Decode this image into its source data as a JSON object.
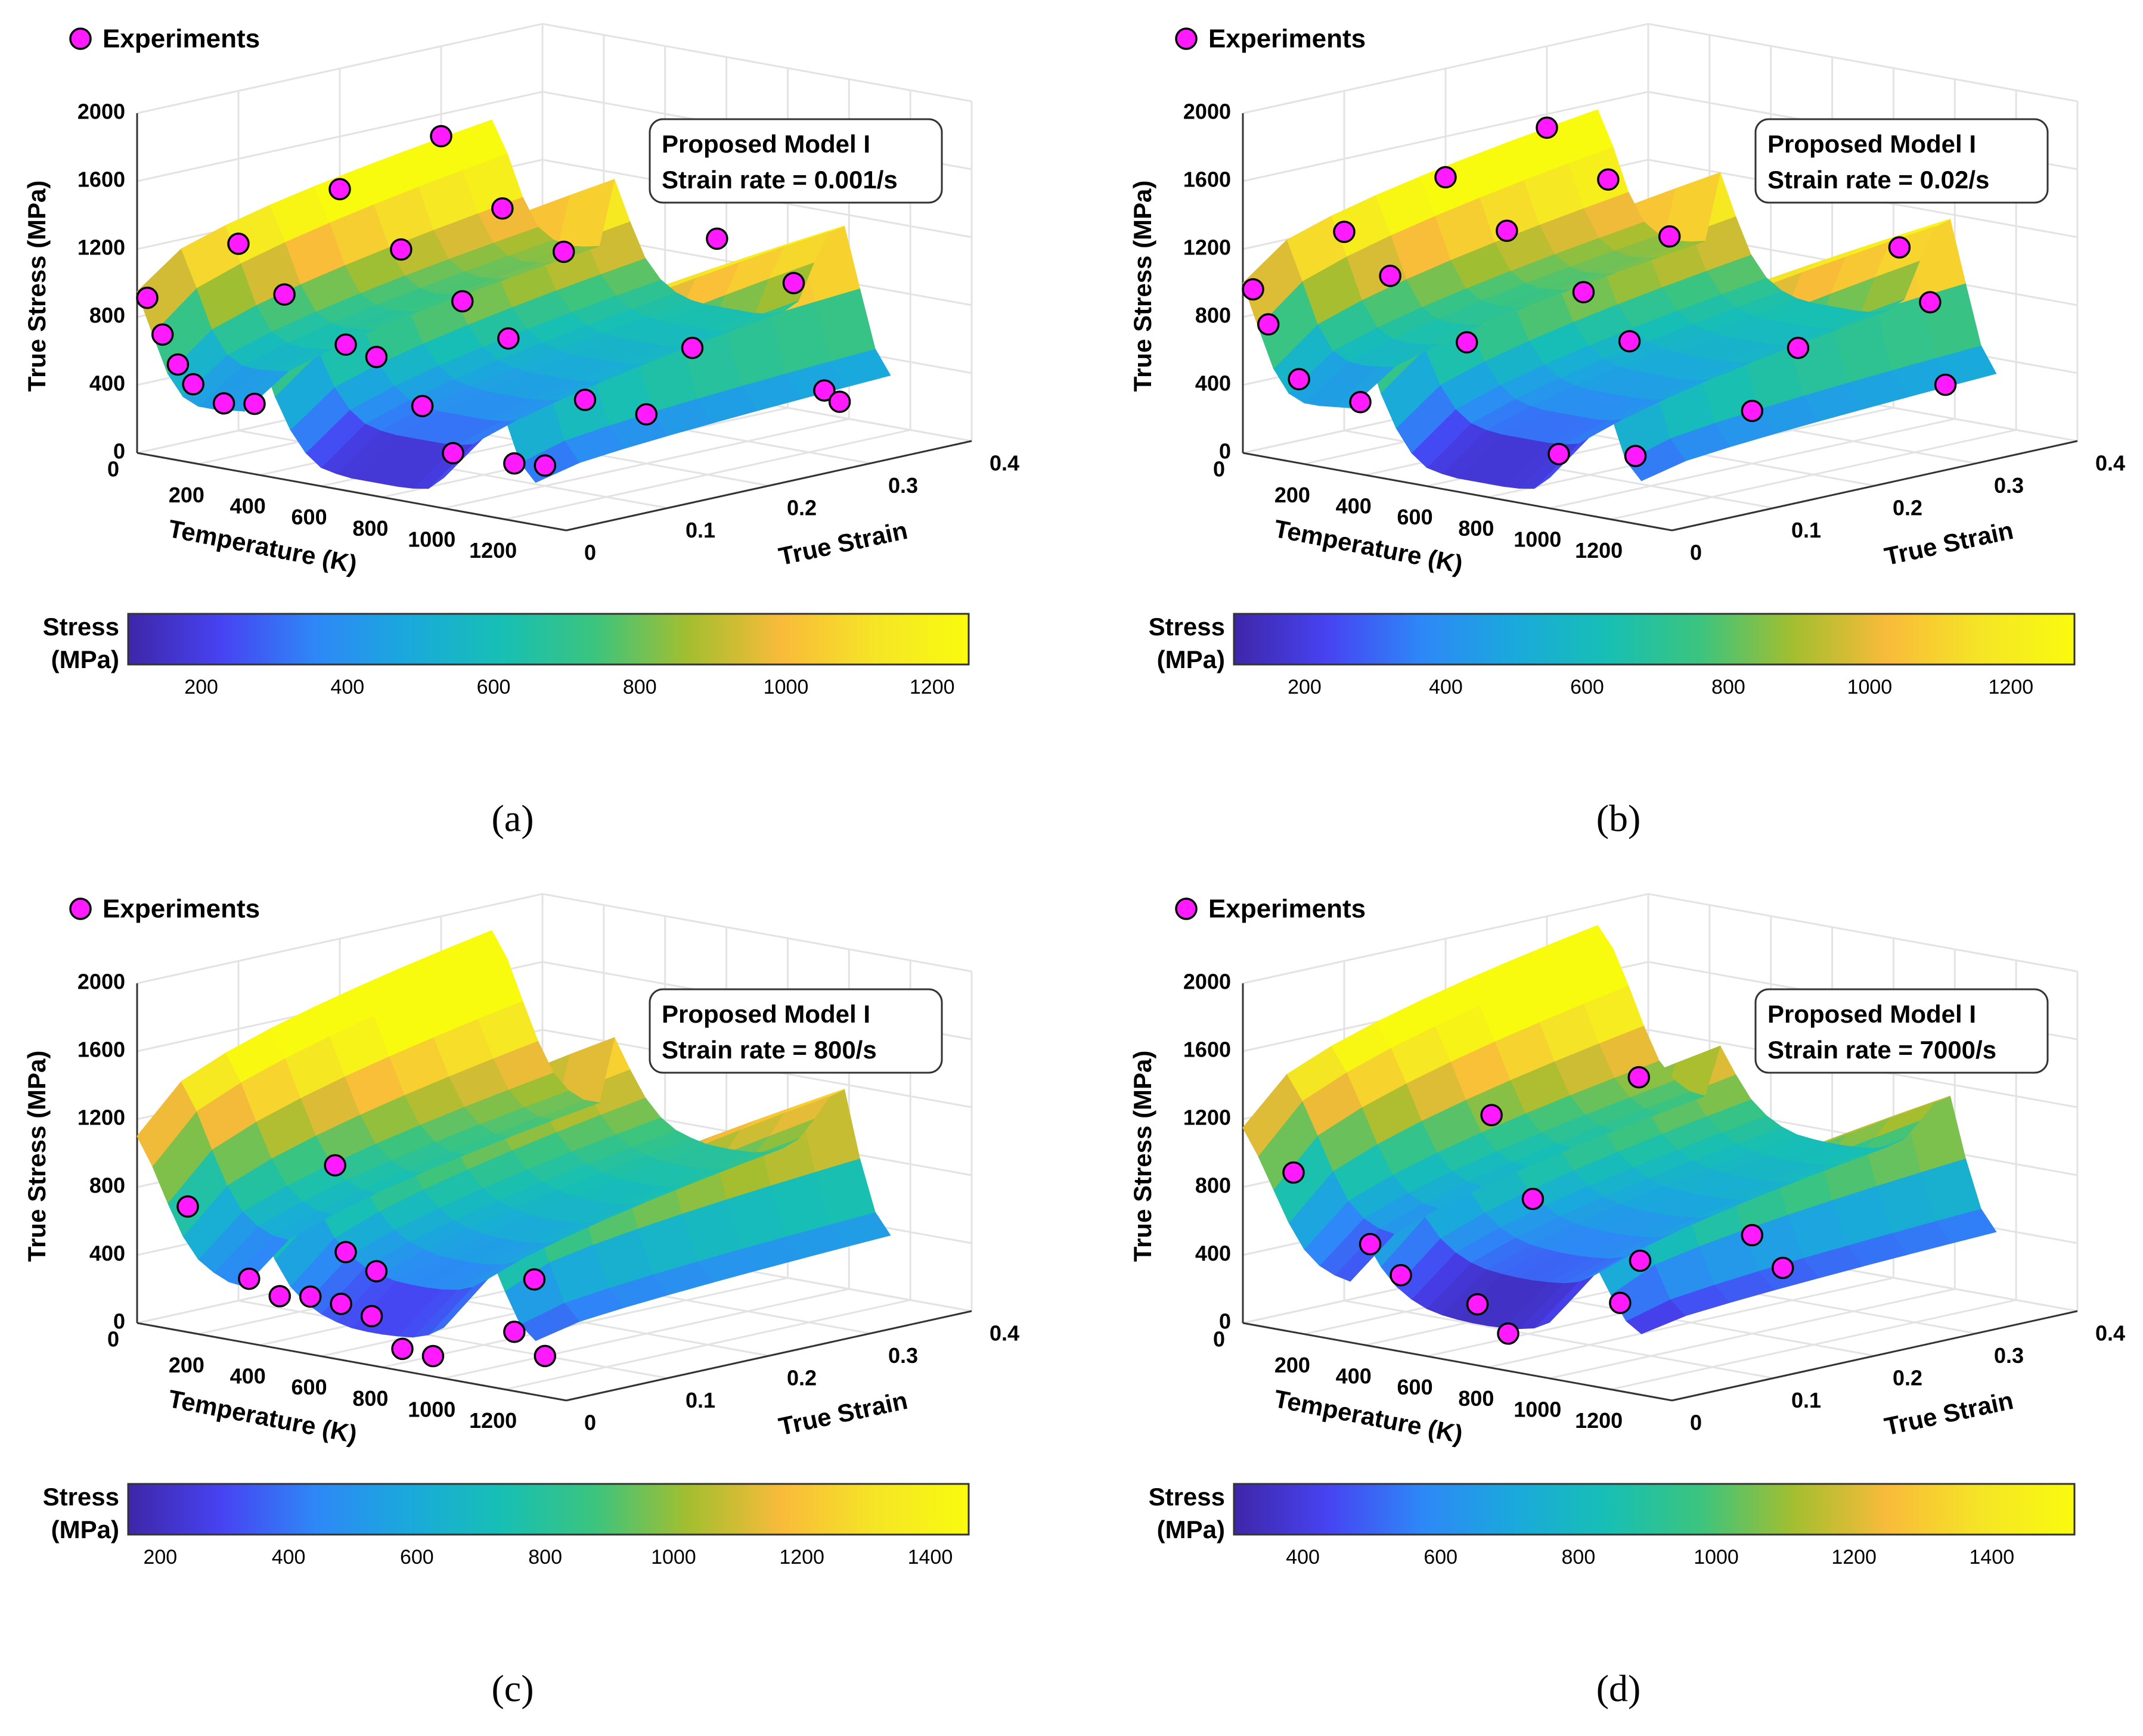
{
  "figure": {
    "panels": [
      {
        "caption": "(a)",
        "legend_label": "Experiments",
        "model_box": {
          "line1": "Proposed Model I",
          "line2": "Strain rate = 0.001/s"
        },
        "zlabel": "True Stress (MPa)",
        "xlabel": "Temperature (K)",
        "ylabel": "True Strain",
        "z_ticks": [
          "0",
          "400",
          "800",
          "1200",
          "1600",
          "2000"
        ],
        "x_ticks": [
          "0",
          "200",
          "400",
          "600",
          "800",
          "1000",
          "1200"
        ],
        "y_ticks": [
          "0",
          "0.1",
          "0.2",
          "0.3",
          "0.4"
        ],
        "colorbar": {
          "label_line1": "Stress",
          "label_line2": "(MPa)",
          "ticks": [
            "200",
            "400",
            "600",
            "800",
            "1000",
            "1200"
          ]
        }
      },
      {
        "caption": "(b)",
        "legend_label": "Experiments",
        "model_box": {
          "line1": "Proposed Model I",
          "line2": "Strain rate = 0.02/s"
        },
        "zlabel": "True Stress (MPa)",
        "xlabel": "Temperature (K)",
        "ylabel": "True Strain",
        "z_ticks": [
          "0",
          "400",
          "800",
          "1200",
          "1600",
          "2000"
        ],
        "x_ticks": [
          "0",
          "200",
          "400",
          "600",
          "800",
          "1000",
          "1200"
        ],
        "y_ticks": [
          "0",
          "0.1",
          "0.2",
          "0.3",
          "0.4"
        ],
        "colorbar": {
          "label_line1": "Stress",
          "label_line2": "(MPa)",
          "ticks": [
            "200",
            "400",
            "600",
            "800",
            "1000",
            "1200"
          ]
        }
      },
      {
        "caption": "(c)",
        "legend_label": "Experiments",
        "model_box": {
          "line1": "Proposed Model I",
          "line2": "Strain rate = 800/s"
        },
        "zlabel": "True Stress (MPa)",
        "xlabel": "Temperature (K)",
        "ylabel": "True Strain",
        "z_ticks": [
          "0",
          "400",
          "800",
          "1200",
          "1600",
          "2000"
        ],
        "x_ticks": [
          "0",
          "200",
          "400",
          "600",
          "800",
          "1000",
          "1200"
        ],
        "y_ticks": [
          "0",
          "0.1",
          "0.2",
          "0.3",
          "0.4"
        ],
        "colorbar": {
          "label_line1": "Stress",
          "label_line2": "(MPa)",
          "ticks": [
            "200",
            "400",
            "600",
            "800",
            "1000",
            "1200",
            "1400"
          ]
        }
      },
      {
        "caption": "(d)",
        "legend_label": "Experiments",
        "model_box": {
          "line1": "Proposed Model I",
          "line2": "Strain rate = 7000/s"
        },
        "zlabel": "True Stress (MPa)",
        "xlabel": "Temperature (K)",
        "ylabel": "True Strain",
        "z_ticks": [
          "0",
          "400",
          "800",
          "1200",
          "1600",
          "2000"
        ],
        "x_ticks": [
          "0",
          "200",
          "400",
          "600",
          "800",
          "1000",
          "1200"
        ],
        "y_ticks": [
          "0",
          "0.1",
          "0.2",
          "0.3",
          "0.4"
        ],
        "colorbar": {
          "label_line1": "Stress",
          "label_line2": "(MPa)",
          "ticks": [
            "400",
            "600",
            "800",
            "1000",
            "1200",
            "1400"
          ]
        }
      }
    ]
  },
  "colors": {
    "marker_fill": "#ff1aff",
    "marker_stroke": "#000000",
    "parula": [
      "#3e26a8",
      "#4743f2",
      "#2e87f7",
      "#1aa9dc",
      "#17bfb4",
      "#3cc47e",
      "#a4be2f",
      "#f9bb3a",
      "#f5e526",
      "#f9fb0e"
    ]
  },
  "chart_data": [
    {
      "type": "surface3d",
      "title": "Proposed Model I — Strain rate = 0.001/s",
      "xlabel": "Temperature (K)",
      "ylabel": "True Strain",
      "zlabel": "True Stress (MPa)",
      "xlim": [
        0,
        1400
      ],
      "ylim": [
        0,
        0.4
      ],
      "zlim": [
        0,
        2000
      ],
      "surface": {
        "temperatures": [
          0,
          50,
          100,
          150,
          200,
          250,
          300,
          350,
          400,
          450,
          500,
          550,
          600,
          650,
          700,
          750,
          800,
          850,
          900,
          950,
          1000,
          1050,
          1100,
          1150,
          1200,
          1250,
          1300
        ],
        "strain_max": 0.35,
        "stress_at_strain_0": [
          950,
          720,
          500,
          380,
          340,
          340,
          350,
          360,
          720,
          480,
          300,
          180,
          110,
          90,
          80,
          80,
          80,
          80,
          85,
          100,
          180,
          430,
          720,
          860,
          600,
          350,
          250
        ],
        "stress_at_strain_max": [
          1500,
          1320,
          1080,
          920,
          860,
          840,
          850,
          870,
          1280,
          1050,
          850,
          740,
          680,
          650,
          640,
          640,
          640,
          640,
          650,
          680,
          760,
          1000,
          1200,
          1250,
          900,
          560,
          420
        ]
      },
      "experiments": [
        {
          "T": 0,
          "strain": 0.01,
          "stress": 900
        },
        {
          "T": 50,
          "strain": 0.01,
          "stress": 700
        },
        {
          "T": 100,
          "strain": 0.01,
          "stress": 540
        },
        {
          "T": 150,
          "strain": 0.01,
          "stress": 440
        },
        {
          "T": 250,
          "strain": 0.01,
          "stress": 360
        },
        {
          "T": 350,
          "strain": 0.01,
          "stress": 390
        },
        {
          "T": 0,
          "strain": 0.1,
          "stress": 1100
        },
        {
          "T": 150,
          "strain": 0.1,
          "stress": 850
        },
        {
          "T": 350,
          "strain": 0.1,
          "stress": 620
        },
        {
          "T": 450,
          "strain": 0.1,
          "stress": 580
        },
        {
          "T": 600,
          "strain": 0.1,
          "stress": 340
        },
        {
          "T": 700,
          "strain": 0.1,
          "stress": 95
        },
        {
          "T": 900,
          "strain": 0.1,
          "stress": 100
        },
        {
          "T": 1000,
          "strain": 0.1,
          "stress": 120
        },
        {
          "T": 0,
          "strain": 0.2,
          "stress": 1290
        },
        {
          "T": 200,
          "strain": 0.2,
          "stress": 1000
        },
        {
          "T": 400,
          "strain": 0.2,
          "stress": 760
        },
        {
          "T": 550,
          "strain": 0.2,
          "stress": 590
        },
        {
          "T": 800,
          "strain": 0.2,
          "stress": 310
        },
        {
          "T": 1000,
          "strain": 0.2,
          "stress": 290
        },
        {
          "T": 1150,
          "strain": 0.2,
          "stress": 730
        },
        {
          "T": 0,
          "strain": 0.3,
          "stress": 1470
        },
        {
          "T": 200,
          "strain": 0.3,
          "stress": 1110
        },
        {
          "T": 400,
          "strain": 0.3,
          "stress": 920
        },
        {
          "T": 900,
          "strain": 0.3,
          "stress": 1160
        },
        {
          "T": 1150,
          "strain": 0.3,
          "stress": 980
        },
        {
          "T": 1250,
          "strain": 0.3,
          "stress": 380
        },
        {
          "T": 1300,
          "strain": 0.3,
          "stress": 330
        }
      ],
      "colorbar": {
        "label": "Stress (MPa)",
        "range": [
          100,
          1250
        ]
      }
    },
    {
      "type": "surface3d",
      "title": "Proposed Model I — Strain rate = 0.02/s",
      "xlabel": "Temperature (K)",
      "ylabel": "True Strain",
      "zlabel": "True Stress (MPa)",
      "xlim": [
        0,
        1400
      ],
      "ylim": [
        0,
        0.4
      ],
      "zlim": [
        0,
        2000
      ],
      "surface": {
        "temperatures": [
          0,
          50,
          100,
          150,
          200,
          250,
          300,
          350,
          400,
          450,
          500,
          550,
          600,
          650,
          700,
          750,
          800,
          850,
          900,
          950,
          1000,
          1050,
          1100,
          1150,
          1200,
          1250,
          1300
        ],
        "strain_max": 0.35,
        "stress_at_strain_0": [
          1000,
          760,
          530,
          400,
          360,
          360,
          370,
          380,
          760,
          500,
          310,
          180,
          110,
          90,
          80,
          80,
          80,
          80,
          85,
          100,
          180,
          430,
          760,
          900,
          620,
          360,
          260
        ],
        "stress_at_strain_max": [
          1560,
          1360,
          1110,
          950,
          890,
          870,
          880,
          900,
          1320,
          1080,
          870,
          750,
          690,
          660,
          650,
          650,
          650,
          650,
          660,
          690,
          770,
          1010,
          1230,
          1290,
          930,
          580,
          430
        ]
      },
      "experiments": [
        {
          "T": 0,
          "strain": 0.01,
          "stress": 950
        },
        {
          "T": 50,
          "strain": 0.01,
          "stress": 760
        },
        {
          "T": 150,
          "strain": 0.01,
          "stress": 470
        },
        {
          "T": 350,
          "strain": 0.01,
          "stress": 400
        },
        {
          "T": 0,
          "strain": 0.1,
          "stress": 1170
        },
        {
          "T": 150,
          "strain": 0.1,
          "stress": 960
        },
        {
          "T": 400,
          "strain": 0.1,
          "stress": 650
        },
        {
          "T": 700,
          "strain": 0.1,
          "stress": 90
        },
        {
          "T": 950,
          "strain": 0.1,
          "stress": 160
        },
        {
          "T": 0,
          "strain": 0.2,
          "stress": 1360
        },
        {
          "T": 200,
          "strain": 0.2,
          "stress": 1110
        },
        {
          "T": 450,
          "strain": 0.2,
          "stress": 830
        },
        {
          "T": 600,
          "strain": 0.2,
          "stress": 590
        },
        {
          "T": 1000,
          "strain": 0.2,
          "stress": 310
        },
        {
          "T": 1150,
          "strain": 0.2,
          "stress": 730
        },
        {
          "T": 0,
          "strain": 0.3,
          "stress": 1520
        },
        {
          "T": 200,
          "strain": 0.3,
          "stress": 1280
        },
        {
          "T": 400,
          "strain": 0.3,
          "stress": 1010
        },
        {
          "T": 1150,
          "strain": 0.3,
          "stress": 1190
        },
        {
          "T": 1250,
          "strain": 0.3,
          "stress": 900
        },
        {
          "T": 1300,
          "strain": 0.3,
          "stress": 430
        }
      ],
      "colorbar": {
        "label": "Stress (MPa)",
        "range": [
          100,
          1290
        ]
      }
    },
    {
      "type": "surface3d",
      "title": "Proposed Model I — Strain rate = 800/s",
      "xlabel": "Temperature (K)",
      "ylabel": "True Strain",
      "zlabel": "True Stress (MPa)",
      "xlim": [
        0,
        1400
      ],
      "ylim": [
        0,
        0.4
      ],
      "zlim": [
        0,
        2000
      ],
      "surface": {
        "temperatures": [
          0,
          50,
          100,
          150,
          200,
          250,
          300,
          350,
          400,
          450,
          500,
          550,
          600,
          650,
          700,
          750,
          800,
          850,
          900,
          950,
          1000,
          1050,
          1100,
          1150,
          1200,
          1250,
          1300
        ],
        "strain_max": 0.35,
        "stress_at_strain_0": [
          1100,
          940,
          740,
          560,
          440,
          380,
          340,
          330,
          700,
          520,
          380,
          300,
          250,
          220,
          200,
          195,
          195,
          200,
          210,
          240,
          300,
          430,
          620,
          780,
          580,
          400,
          320
        ],
        "stress_at_strain_max": [
          1850,
          1700,
          1470,
          1250,
          1080,
          990,
          950,
          950,
          1350,
          1180,
          1030,
          930,
          870,
          840,
          820,
          815,
          815,
          820,
          840,
          880,
          950,
          1080,
          1230,
          1290,
          900,
          600,
          480
        ]
      },
      "experiments": [
        {
          "T": 0,
          "strain": 0.05,
          "stress": 620
        },
        {
          "T": 200,
          "strain": 0.05,
          "stress": 260
        },
        {
          "T": 300,
          "strain": 0.05,
          "stress": 190
        },
        {
          "T": 150,
          "strain": 0.15,
          "stress": 780
        },
        {
          "T": 350,
          "strain": 0.1,
          "stress": 400
        },
        {
          "T": 450,
          "strain": 0.1,
          "stress": 320
        },
        {
          "T": 400,
          "strain": 0.05,
          "stress": 220
        },
        {
          "T": 500,
          "strain": 0.05,
          "stress": 210
        },
        {
          "T": 600,
          "strain": 0.05,
          "stress": 170
        },
        {
          "T": 700,
          "strain": 0.05,
          "stress": 10
        },
        {
          "T": 800,
          "strain": 0.05,
          "stress": 0
        },
        {
          "T": 900,
          "strain": 0.1,
          "stress": 110
        },
        {
          "T": 1000,
          "strain": 0.1,
          "stress": 0
        },
        {
          "T": 800,
          "strain": 0.15,
          "stress": 320
        }
      ],
      "colorbar": {
        "label": "Stress (MPa)",
        "range": [
          150,
          1460
        ]
      }
    },
    {
      "type": "surface3d",
      "title": "Proposed Model I — Strain rate = 7000/s",
      "xlabel": "Temperature (K)",
      "ylabel": "True Strain",
      "zlabel": "True Stress (MPa)",
      "xlim": [
        0,
        1400
      ],
      "ylim": [
        0,
        0.4
      ],
      "zlim": [
        0,
        2000
      ],
      "surface": {
        "temperatures": [
          0,
          50,
          100,
          150,
          200,
          250,
          300,
          350,
          400,
          450,
          500,
          550,
          600,
          650,
          700,
          750,
          800,
          850,
          900,
          950,
          1000,
          1050,
          1100,
          1150,
          1200,
          1250,
          1300
        ],
        "strain_max": 0.35,
        "stress_at_strain_0": [
          1150,
          1000,
          820,
          640,
          500,
          420,
          380,
          360,
          620,
          480,
          380,
          320,
          280,
          260,
          250,
          245,
          245,
          250,
          260,
          280,
          330,
          440,
          600,
          720,
          560,
          420,
          360
        ],
        "stress_at_strain_max": [
          1880,
          1760,
          1560,
          1340,
          1150,
          1050,
          1000,
          990,
          1300,
          1150,
          1020,
          940,
          890,
          860,
          850,
          845,
          845,
          850,
          860,
          890,
          950,
          1070,
          1200,
          1250,
          900,
          620,
          500
        ]
      },
      "experiments": [
        {
          "T": 0,
          "strain": 0.05,
          "stress": 820
        },
        {
          "T": 250,
          "strain": 0.05,
          "stress": 480
        },
        {
          "T": 350,
          "strain": 0.05,
          "stress": 330
        },
        {
          "T": 150,
          "strain": 0.2,
          "stress": 1010
        },
        {
          "T": 300,
          "strain": 0.3,
          "stress": 1150
        },
        {
          "T": 450,
          "strain": 0.15,
          "stress": 680
        },
        {
          "T": 600,
          "strain": 0.05,
          "stress": 240
        },
        {
          "T": 700,
          "strain": 0.05,
          "stress": 100
        },
        {
          "T": 800,
          "strain": 0.15,
          "stress": 430
        },
        {
          "T": 900,
          "strain": 0.1,
          "stress": 280
        },
        {
          "T": 1000,
          "strain": 0.2,
          "stress": 580
        },
        {
          "T": 1100,
          "strain": 0.2,
          "stress": 420
        }
      ],
      "colorbar": {
        "label": "Stress (MPa)",
        "range": [
          300,
          1520
        ]
      }
    }
  ]
}
